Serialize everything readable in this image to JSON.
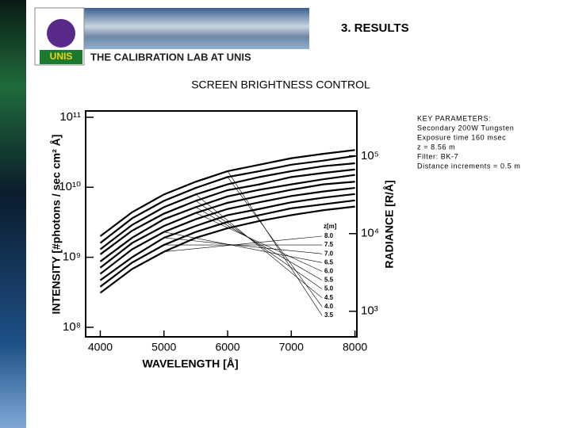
{
  "slide": {
    "title": "3. RESULTS",
    "logo": "UNIS",
    "subtitle": "THE CALIBRATION LAB AT UNIS",
    "key_parameters": [
      "KEY PARAMETERS:",
      "Secondary 200W Tungsten",
      "Exposure time 160 msec",
      "z = 8.56 m",
      "Filter: BK-7",
      "Distance  increments  = 0.5 m"
    ]
  },
  "chart_data": {
    "type": "line",
    "title": "SCREEN BRIGHTNESS CONTROL",
    "x_label": "WAVELENGTH [Å]",
    "y_label": "INTENSITY [#photons / sec cm² Å]",
    "y2_label": "RADIANCE [R/Å]",
    "legend_title": "z[m]",
    "color": "#000000",
    "log_y": true,
    "x": [
      4000,
      4500,
      5000,
      5500,
      6000,
      6500,
      7000,
      7500,
      8000
    ],
    "xlim": [
      3770,
      8030
    ],
    "xticks": [
      4000,
      5000,
      6000,
      7000,
      8000
    ],
    "ylim": [
      73000000,
      123000000000
    ],
    "yticks": [
      {
        "value": 100000000,
        "label": "10⁸"
      },
      {
        "value": 1000000000,
        "label": "10⁹"
      },
      {
        "value": 10000000000,
        "label": "10¹⁰"
      },
      {
        "value": 100000000000,
        "label": "10¹¹"
      }
    ],
    "y2lim": [
      468,
      380000
    ],
    "y2ticks": [
      {
        "value": 1000,
        "label": "10³"
      },
      {
        "value": 10000,
        "label": "10⁴"
      },
      {
        "value": 100000,
        "label": "10⁵"
      }
    ],
    "series": [
      {
        "name": "8.0",
        "values": [
          310000000,
          680000000,
          1200000000,
          1900000000,
          2600000000,
          3300000000,
          4000000000,
          4700000000,
          5300000000
        ]
      },
      {
        "name": "7.5",
        "values": [
          380000000,
          840000000,
          1500000000,
          2300000000,
          3200000000,
          4000000000,
          5000000000,
          5700000000,
          6500000000
        ]
      },
      {
        "name": "7.0",
        "values": [
          470000000,
          1000000000,
          1900000000,
          2800000000,
          4000000000,
          4900000000,
          6100000000,
          7100000000,
          8000000000
        ]
      },
      {
        "name": "6.5",
        "values": [
          580000000,
          1300000000,
          2300000000,
          3500000000,
          4900000000,
          6100000000,
          7500000000,
          8700000000,
          9800000000
        ]
      },
      {
        "name": "6.0",
        "values": [
          710000000,
          1600000000,
          2800000000,
          4300000000,
          6000000000,
          7500000000,
          9200000000,
          11000000000,
          12000000000
        ]
      },
      {
        "name": "5.5",
        "values": [
          870000000,
          1900000000,
          3500000000,
          5200000000,
          7400000000,
          9200000000,
          11000000000,
          13000000000,
          15000000000
        ]
      },
      {
        "name": "5.0",
        "values": [
          1100000000,
          2400000000,
          4200000000,
          6400000000,
          9100000000,
          11000000000,
          14000000000,
          16000000000,
          18000000000
        ]
      },
      {
        "name": "4.5",
        "values": [
          1300000000,
          2900000000,
          5200000000,
          7900000000,
          11000000000,
          14000000000,
          17000000000,
          20000000000,
          22000000000
        ]
      },
      {
        "name": "4.0",
        "values": [
          1600000000,
          3600000000,
          6400000000,
          9800000000,
          14000000000,
          17000000000,
          21000000000,
          24000000000,
          28000000000
        ]
      },
      {
        "name": "3.5",
        "values": [
          2000000000,
          4400000000,
          7900000000,
          12000000000,
          17000000000,
          21000000000,
          26000000000,
          30000000000,
          34000000000
        ]
      }
    ]
  }
}
